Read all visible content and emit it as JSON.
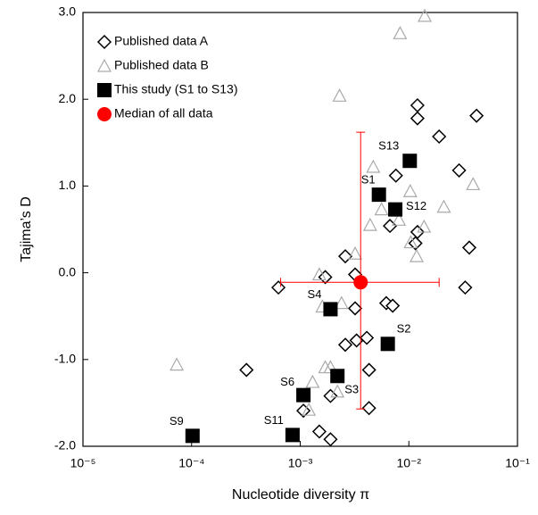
{
  "chart_data": {
    "type": "scatter",
    "xlabel": "Nucleotide diversity π",
    "ylabel": "Tajima’s D",
    "xscale": "log",
    "xlim": [
      1e-05,
      0.1
    ],
    "ylim": [
      -2,
      3
    ],
    "xticks": [
      {
        "value": 1e-05,
        "label": "10⁻⁵"
      },
      {
        "value": 0.0001,
        "label": "10⁻⁴"
      },
      {
        "value": 0.001,
        "label": "10⁻³"
      },
      {
        "value": 0.01,
        "label": "10⁻²"
      },
      {
        "value": 0.1,
        "label": "10⁻¹"
      }
    ],
    "yticks": [
      {
        "value": -2,
        "label": "-2.0"
      },
      {
        "value": -1,
        "label": "-1.0"
      },
      {
        "value": 0,
        "label": "0.0"
      },
      {
        "value": 1,
        "label": "1.0"
      },
      {
        "value": 2,
        "label": "2.0"
      },
      {
        "value": 3,
        "label": "3.0"
      }
    ],
    "legend": "upper left",
    "series": [
      {
        "name": "Published data A",
        "marker": "diamond",
        "color": "#000000",
        "x": [
          0.012,
          0.012,
          0.042,
          0.019,
          0.029,
          0.0076,
          0.0067,
          0.012,
          0.0115,
          0.036,
          0.033,
          0.0026,
          0.0017,
          0.0032,
          0.00063,
          0.0062,
          0.0071,
          0.0032,
          0.0041,
          0.0033,
          0.0026,
          0.00032,
          0.0043,
          0.0019,
          0.00107,
          0.0043,
          0.0015,
          0.0019
        ],
        "values": [
          1.93,
          1.78,
          1.81,
          1.57,
          1.18,
          1.12,
          0.54,
          0.47,
          0.34,
          0.29,
          -0.17,
          0.19,
          -0.05,
          -0.02,
          -0.17,
          -0.35,
          -0.38,
          -0.41,
          -0.75,
          -0.78,
          -0.83,
          -1.12,
          -1.12,
          -1.42,
          -1.59,
          -1.56,
          -1.83,
          -1.92
        ]
      },
      {
        "name": "Published data B",
        "marker": "triangle",
        "color": "#aaaaaa",
        "x": [
          0.014,
          0.0083,
          0.0023,
          0.039,
          0.0047,
          0.0103,
          0.021,
          0.0056,
          0.0081,
          0.0044,
          0.0138,
          0.0104,
          0.0118,
          0.0032,
          0.0015,
          0.0016,
          0.0024,
          7.3e-05,
          0.0017,
          0.0019,
          0.0013,
          0.0012,
          0.0022
        ],
        "values": [
          2.96,
          2.76,
          2.04,
          1.02,
          1.22,
          0.94,
          0.76,
          0.73,
          0.61,
          0.55,
          0.53,
          0.35,
          0.19,
          0.22,
          -0.02,
          -0.39,
          -0.35,
          -1.06,
          -1.09,
          -1.09,
          -1.26,
          -1.58,
          -1.37
        ]
      },
      {
        "name": "This study (S1 to S13)",
        "marker": "square",
        "color": "#000000",
        "x": [
          0.0102,
          0.0053,
          0.0075,
          0.0019,
          0.0064,
          0.00107,
          0.0022,
          0.00085,
          0.000102
        ],
        "values": [
          1.29,
          0.9,
          0.73,
          -0.42,
          -0.82,
          -1.41,
          -1.19,
          -1.87,
          -1.88
        ],
        "point_labels": [
          "S13",
          "S1",
          "S12",
          "S4",
          "S2",
          "S6",
          "S3",
          "S11",
          "S9"
        ]
      },
      {
        "name": "Median of all data",
        "marker": "circle",
        "color": "#ff0000",
        "x": [
          0.0036
        ],
        "values": [
          -0.11
        ],
        "x_range": [
          0.00066,
          0.019
        ],
        "y_range": [
          -1.57,
          1.62
        ]
      }
    ]
  }
}
